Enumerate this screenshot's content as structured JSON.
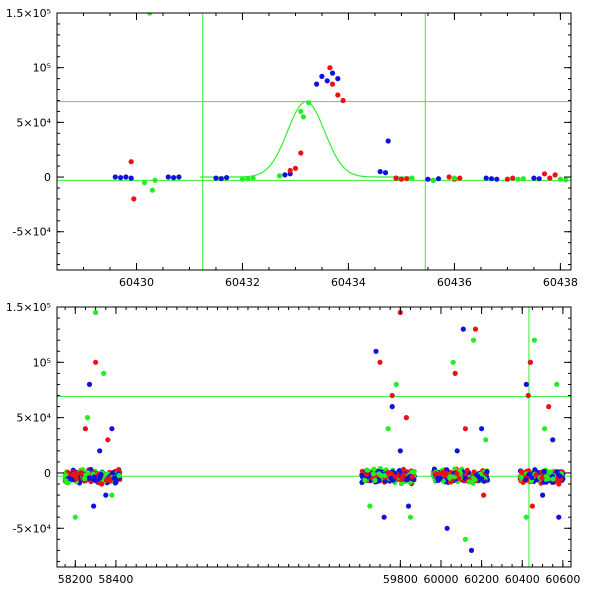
{
  "colors": {
    "red": "#ee1111",
    "green": "#22ee22",
    "blue": "#1111dd",
    "line": "#33ee33"
  },
  "chart_data": [
    {
      "type": "scatter",
      "xlim": [
        60428.5,
        60438.2
      ],
      "ylim": [
        -85000,
        150000
      ],
      "xticks": [
        {
          "value": 60430,
          "label": "60430"
        },
        {
          "value": 60432,
          "label": "60432"
        },
        {
          "value": 60434,
          "label": "60434"
        },
        {
          "value": 60436,
          "label": "60436"
        },
        {
          "value": 60438,
          "label": "60438"
        }
      ],
      "yticks": [
        {
          "value": -50000,
          "label": "-5×10⁴"
        },
        {
          "value": 0,
          "label": "0"
        },
        {
          "value": 50000,
          "label": "5×10⁴"
        },
        {
          "value": 100000,
          "label": "10⁵"
        },
        {
          "value": 150000,
          "label": "1.5×10⁵"
        }
      ],
      "vlines": [
        60431.25,
        60435.45
      ],
      "hlines": [
        69000,
        -3000
      ],
      "model_curve": {
        "peak_x": 60433.2,
        "peak_y": 69000,
        "baseline": 0,
        "width": 0.35
      },
      "series": [
        {
          "color": "blue",
          "points": [
            [
              60429.6,
              0
            ],
            [
              60429.7,
              -500
            ],
            [
              60429.8,
              0
            ],
            [
              60429.9,
              -1000
            ],
            [
              60430.6,
              0
            ],
            [
              60430.7,
              -500
            ],
            [
              60430.8,
              0
            ],
            [
              60431.5,
              -1000
            ],
            [
              60431.6,
              -1500
            ],
            [
              60431.7,
              -500
            ],
            [
              60432.8,
              2000
            ],
            [
              60432.9,
              3000
            ],
            [
              60433.4,
              85000
            ],
            [
              60433.5,
              92000
            ],
            [
              60433.6,
              88000
            ],
            [
              60433.7,
              95000
            ],
            [
              60433.8,
              90000
            ],
            [
              60434.6,
              5000
            ],
            [
              60434.7,
              4000
            ],
            [
              60434.75,
              33000
            ],
            [
              60434.9,
              -1000
            ],
            [
              60435.5,
              -2000
            ],
            [
              60435.6,
              -3000
            ],
            [
              60435.7,
              -1500
            ],
            [
              60436.6,
              -1000
            ],
            [
              60436.7,
              -1500
            ],
            [
              60436.8,
              -2000
            ],
            [
              60437.5,
              -1000
            ],
            [
              60437.6,
              -1500
            ]
          ]
        },
        {
          "color": "red",
          "points": [
            [
              60429.9,
              14000
            ],
            [
              60429.95,
              -20000
            ],
            [
              60432.9,
              6000
            ],
            [
              60433.0,
              8000
            ],
            [
              60433.1,
              22000
            ],
            [
              60433.65,
              100000
            ],
            [
              60433.7,
              85000
            ],
            [
              60433.8,
              75000
            ],
            [
              60433.9,
              70000
            ],
            [
              60434.9,
              -1000
            ],
            [
              60435.0,
              -2000
            ],
            [
              60435.1,
              -1500
            ],
            [
              60435.9,
              0
            ],
            [
              60436.0,
              -2000
            ],
            [
              60436.1,
              -1000
            ],
            [
              60437.0,
              -2000
            ],
            [
              60437.1,
              -1000
            ],
            [
              60437.7,
              3000
            ],
            [
              60437.8,
              -1000
            ],
            [
              60437.9,
              2000
            ]
          ]
        },
        {
          "color": "green",
          "points": [
            [
              60430.15,
              -5000
            ],
            [
              60430.3,
              -12000
            ],
            [
              60430.35,
              -3000
            ],
            [
              60430.25,
              150000
            ],
            [
              60432.0,
              -2000
            ],
            [
              60432.1,
              -1500
            ],
            [
              60432.2,
              -1000
            ],
            [
              60432.7,
              1000
            ],
            [
              60433.1,
              60000
            ],
            [
              60433.15,
              55000
            ],
            [
              60433.25,
              68000
            ],
            [
              60435.2,
              -1000
            ],
            [
              60435.6,
              -3000
            ],
            [
              60436.0,
              -1000
            ],
            [
              60437.2,
              -2000
            ],
            [
              60437.3,
              -1500
            ],
            [
              60438.0,
              -2000
            ],
            [
              60438.1,
              -2500
            ]
          ]
        }
      ]
    },
    {
      "type": "scatter",
      "xlim": [
        58110,
        60640
      ],
      "ylim": [
        -85000,
        150000
      ],
      "xticks": [
        {
          "value": 58200,
          "label": "58200"
        },
        {
          "value": 58400,
          "label": "58400"
        },
        {
          "value": 59800,
          "label": "59800"
        },
        {
          "value": 60000,
          "label": "60000"
        },
        {
          "value": 60200,
          "label": "60200"
        },
        {
          "value": 60400,
          "label": "60400"
        },
        {
          "value": 60600,
          "label": "60600"
        }
      ],
      "yticks": [
        {
          "value": -50000,
          "label": "-5×10⁴"
        },
        {
          "value": 0,
          "label": "0"
        },
        {
          "value": 50000,
          "label": "5×10⁴"
        },
        {
          "value": 100000,
          "label": "10⁵"
        },
        {
          "value": 150000,
          "label": "1.5×10⁵"
        }
      ],
      "vlines": [
        60433
      ],
      "hlines": [
        69000,
        -3000
      ],
      "seasons": [
        [
          58150,
          58420
        ],
        [
          59610,
          59870
        ],
        [
          59960,
          60230
        ],
        [
          60390,
          60600
        ]
      ],
      "series": [
        {
          "color": "blue",
          "points": [
            [
              58270,
              80000
            ],
            [
              58290,
              -30000
            ],
            [
              58320,
              20000
            ],
            [
              58350,
              -20000
            ],
            [
              58380,
              40000
            ],
            [
              59680,
              110000
            ],
            [
              59720,
              -40000
            ],
            [
              59760,
              60000
            ],
            [
              59800,
              20000
            ],
            [
              59840,
              -30000
            ],
            [
              60030,
              -50000
            ],
            [
              60080,
              20000
            ],
            [
              60110,
              130000
            ],
            [
              60150,
              -70000
            ],
            [
              60200,
              40000
            ],
            [
              60420,
              80000
            ],
            [
              60440,
              100000
            ],
            [
              60500,
              -20000
            ],
            [
              60550,
              30000
            ],
            [
              60580,
              -40000
            ]
          ]
        },
        {
          "color": "red",
          "points": [
            [
              58250,
              40000
            ],
            [
              58300,
              100000
            ],
            [
              58330,
              -10000
            ],
            [
              58360,
              30000
            ],
            [
              59700,
              100000
            ],
            [
              59760,
              70000
            ],
            [
              59800,
              145000
            ],
            [
              59830,
              50000
            ],
            [
              60070,
              90000
            ],
            [
              60120,
              40000
            ],
            [
              60170,
              130000
            ],
            [
              60210,
              -20000
            ],
            [
              60430,
              70000
            ],
            [
              60440,
              100000
            ],
            [
              60450,
              -30000
            ],
            [
              60530,
              60000
            ],
            [
              60580,
              -10000
            ]
          ]
        },
        {
          "color": "green",
          "points": [
            [
              58200,
              -40000
            ],
            [
              58260,
              50000
            ],
            [
              58300,
              145000
            ],
            [
              58340,
              90000
            ],
            [
              58380,
              -20000
            ],
            [
              59650,
              -30000
            ],
            [
              59740,
              40000
            ],
            [
              59780,
              80000
            ],
            [
              59850,
              -40000
            ],
            [
              60060,
              100000
            ],
            [
              60120,
              -60000
            ],
            [
              60160,
              120000
            ],
            [
              60220,
              30000
            ],
            [
              60420,
              -40000
            ],
            [
              60460,
              120000
            ],
            [
              60510,
              40000
            ],
            [
              60570,
              80000
            ]
          ]
        }
      ]
    }
  ]
}
